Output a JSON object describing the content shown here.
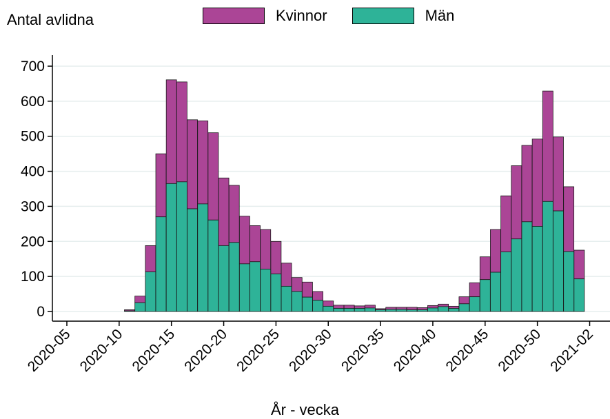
{
  "chart_data": {
    "type": "bar",
    "stacked": true,
    "ylabel": "Antal avlidna",
    "xlabel": "År - vecka",
    "ylim": [
      0,
      700
    ],
    "yticks": [
      0,
      100,
      200,
      300,
      400,
      500,
      600,
      700
    ],
    "xticks": [
      {
        "label": "2020-05",
        "week_index": 5
      },
      {
        "label": "2020-10",
        "week_index": 10
      },
      {
        "label": "2020-15",
        "week_index": 15
      },
      {
        "label": "2020-20",
        "week_index": 20
      },
      {
        "label": "2020-25",
        "week_index": 25
      },
      {
        "label": "2020-30",
        "week_index": 30
      },
      {
        "label": "2020-35",
        "week_index": 35
      },
      {
        "label": "2020-40",
        "week_index": 40
      },
      {
        "label": "2020-45",
        "week_index": 45
      },
      {
        "label": "2020-50",
        "week_index": 50
      },
      {
        "label": "2021-02",
        "week_index": 55
      }
    ],
    "grid": true,
    "legend_position": "top",
    "weeks": [
      "2020-11",
      "2020-12",
      "2020-13",
      "2020-14",
      "2020-15",
      "2020-16",
      "2020-17",
      "2020-18",
      "2020-19",
      "2020-20",
      "2020-21",
      "2020-22",
      "2020-23",
      "2020-24",
      "2020-25",
      "2020-26",
      "2020-27",
      "2020-28",
      "2020-29",
      "2020-30",
      "2020-31",
      "2020-32",
      "2020-33",
      "2020-34",
      "2020-35",
      "2020-36",
      "2020-37",
      "2020-38",
      "2020-39",
      "2020-40",
      "2020-41",
      "2020-42",
      "2020-43",
      "2020-44",
      "2020-45",
      "2020-46",
      "2020-47",
      "2020-48",
      "2020-49",
      "2020-50",
      "2020-51",
      "2020-52",
      "2020-53",
      "2021-01"
    ],
    "week_index": [
      11,
      12,
      13,
      14,
      15,
      16,
      17,
      18,
      19,
      20,
      21,
      22,
      23,
      24,
      25,
      26,
      27,
      28,
      29,
      30,
      31,
      32,
      33,
      34,
      35,
      36,
      37,
      38,
      39,
      40,
      41,
      42,
      43,
      44,
      45,
      46,
      47,
      48,
      49,
      50,
      51,
      52,
      53,
      54
    ],
    "series": [
      {
        "name": "Män",
        "color": "#2eb398",
        "values": [
          2,
          25,
          113,
          270,
          365,
          370,
          293,
          307,
          261,
          188,
          197,
          136,
          142,
          121,
          107,
          72,
          57,
          41,
          32,
          15,
          9,
          9,
          9,
          10,
          5,
          6,
          6,
          5,
          5,
          10,
          14,
          9,
          22,
          42,
          91,
          112,
          170,
          207,
          256,
          243,
          314,
          287,
          171,
          93
        ]
      },
      {
        "name": "Kvinnor",
        "color": "#ab4596",
        "values": [
          3,
          19,
          75,
          180,
          296,
          285,
          254,
          237,
          249,
          193,
          163,
          136,
          103,
          113,
          93,
          66,
          40,
          43,
          25,
          15,
          9,
          9,
          7,
          8,
          3,
          6,
          6,
          7,
          6,
          7,
          7,
          6,
          20,
          40,
          65,
          122,
          160,
          209,
          218,
          249,
          315,
          211,
          185,
          82
        ]
      }
    ]
  }
}
